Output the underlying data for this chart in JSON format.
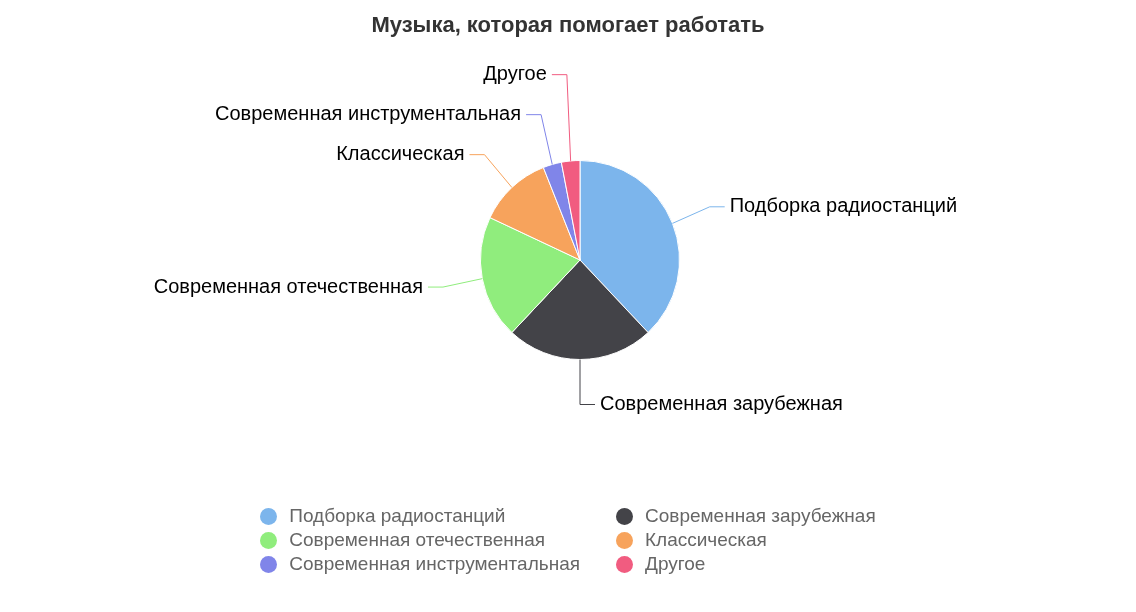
{
  "chart_data": {
    "type": "pie",
    "title": "Музыка, которая помогает работать",
    "categories": [
      "Подборка радиостанций",
      "Современная зарубежная",
      "Современная отечественная",
      "Классическая",
      "Современная инструментальная",
      "Другое"
    ],
    "values": [
      38,
      24,
      20,
      12,
      3,
      3
    ],
    "colors": [
      "#7cb5ec",
      "#434348",
      "#90ed7d",
      "#f7a35c",
      "#8085e9",
      "#f15c80"
    ],
    "legend": "bottom"
  }
}
